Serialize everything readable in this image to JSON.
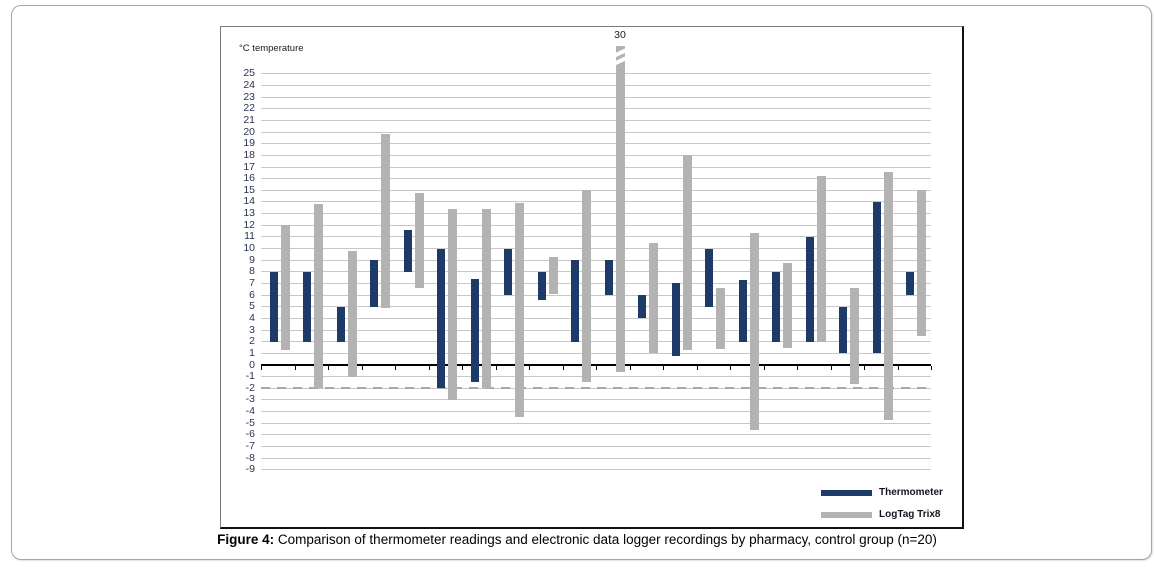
{
  "figure": {
    "caption_prefix": "Figure 4:",
    "caption_text": " Comparison of thermometer readings and electronic data logger recordings by pharmacy, control group (n=20)"
  },
  "chart_data": {
    "type": "bar",
    "subtype": "floating-range-bars",
    "title": "",
    "ylabel": "°C temperature",
    "xlabel": "",
    "ylim": [
      -9,
      25
    ],
    "yticks": [
      25,
      24,
      23,
      22,
      21,
      20,
      19,
      18,
      17,
      16,
      15,
      14,
      13,
      12,
      11,
      10,
      9,
      8,
      7,
      6,
      5,
      4,
      3,
      2,
      1,
      0,
      -1,
      -2,
      -3,
      -4,
      -5,
      -6,
      -7,
      -8,
      -9
    ],
    "n_pharmacies": 20,
    "grid": "horizontal-every-degree",
    "dashed_line_y": -2,
    "legend_position": "bottom-right-inside",
    "break_label": "30",
    "broken_bar": {
      "series": "LogTag Trix8",
      "pharmacy_index": 11,
      "true_max_value": 30
    },
    "series": [
      {
        "name": "Thermometer",
        "color": "#1e3a66",
        "ranges": [
          [
            2,
            8
          ],
          [
            2,
            8
          ],
          [
            2,
            5
          ],
          [
            5,
            9
          ],
          [
            8,
            11.6
          ],
          [
            -2,
            10
          ],
          [
            -1.5,
            7.4
          ],
          [
            6,
            10
          ],
          [
            5.6,
            8
          ],
          [
            2,
            9
          ],
          [
            6,
            9
          ],
          [
            4,
            6
          ],
          [
            0.8,
            7
          ],
          [
            5,
            10
          ],
          [
            2,
            7.3
          ],
          [
            2,
            8
          ],
          [
            2,
            11
          ],
          [
            1,
            5
          ],
          [
            1,
            14
          ],
          [
            6,
            8
          ]
        ]
      },
      {
        "name": "LogTag Trix8",
        "color": "#b3b3b3",
        "ranges": [
          [
            1.3,
            12
          ],
          [
            -2,
            13.8
          ],
          [
            -1,
            9.8
          ],
          [
            4.9,
            19.8
          ],
          [
            6.6,
            14.8
          ],
          [
            -3,
            13.4
          ],
          [
            -2,
            13.4
          ],
          [
            -4.5,
            13.9
          ],
          [
            6.1,
            9.3
          ],
          [
            -1.5,
            15
          ],
          [
            -0.6,
            30
          ],
          [
            1,
            10.5
          ],
          [
            1.3,
            18
          ],
          [
            1.4,
            6.6
          ],
          [
            -5.6,
            11.3
          ],
          [
            1.5,
            8.8
          ],
          [
            2,
            16.2
          ],
          [
            -1.6,
            6.6
          ],
          [
            -4.7,
            16.6
          ],
          [
            2.5,
            15
          ]
        ]
      }
    ]
  }
}
